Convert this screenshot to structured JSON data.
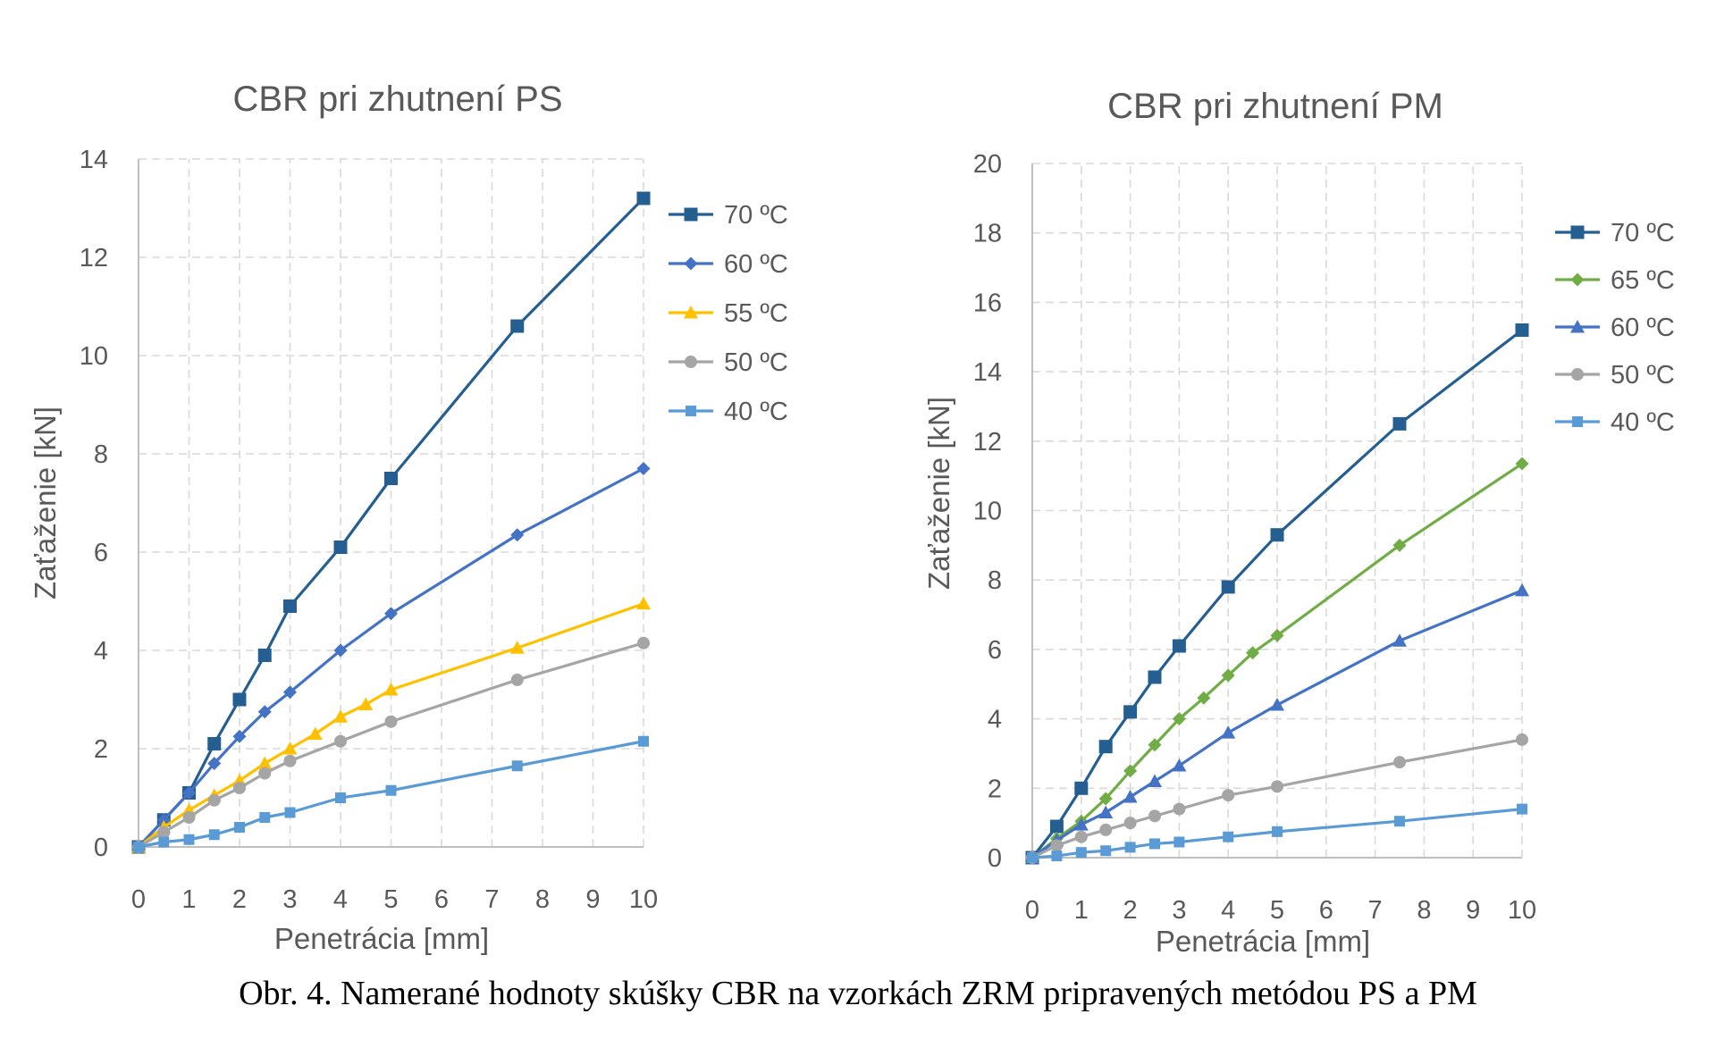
{
  "caption": "Obr. 4. Namerané hodnoty skúšky CBR na vzorkách ZRM pripravených metódou PS a PM",
  "chart_data": [
    {
      "type": "line",
      "title": "CBR pri zhutnení PS",
      "xlabel": "Penetrácia [mm]",
      "ylabel": "Zaťaženie [kN]",
      "xlim": [
        0,
        10
      ],
      "ylim": [
        0,
        14
      ],
      "xticks": [
        0,
        1,
        2,
        3,
        4,
        5,
        6,
        7,
        8,
        9,
        10
      ],
      "yticks": [
        0,
        2,
        4,
        6,
        8,
        10,
        12,
        14
      ],
      "grid": true,
      "legend_position": "right",
      "series": [
        {
          "name": "70 ºC",
          "color": "#255E91",
          "marker": "square",
          "x": [
            0,
            0.5,
            1,
            1.5,
            2,
            2.5,
            3,
            4,
            5,
            7.5,
            10
          ],
          "y": [
            0,
            0.55,
            1.1,
            2.1,
            3.0,
            3.9,
            4.9,
            6.1,
            7.5,
            10.6,
            13.2
          ]
        },
        {
          "name": "60 ºC",
          "color": "#4472C4",
          "marker": "diamond",
          "x": [
            0,
            0.5,
            1,
            1.5,
            2,
            2.5,
            3,
            4,
            5,
            7.5,
            10
          ],
          "y": [
            0,
            0.55,
            1.1,
            1.7,
            2.25,
            2.75,
            3.15,
            4.0,
            4.75,
            6.35,
            7.7
          ]
        },
        {
          "name": "55 ºC",
          "color": "#FFC000",
          "marker": "triangle",
          "x": [
            0,
            0.5,
            1,
            1.5,
            2,
            2.5,
            3,
            3.5,
            4,
            4.5,
            5,
            7.5,
            10
          ],
          "y": [
            0,
            0.4,
            0.75,
            1.05,
            1.35,
            1.7,
            2.0,
            2.3,
            2.65,
            2.9,
            3.2,
            4.05,
            4.95
          ]
        },
        {
          "name": "50 ºC",
          "color": "#A5A5A5",
          "marker": "circle",
          "x": [
            0,
            0.5,
            1,
            1.5,
            2,
            2.5,
            3,
            4,
            5,
            7.5,
            10
          ],
          "y": [
            0,
            0.3,
            0.6,
            0.95,
            1.2,
            1.5,
            1.75,
            2.15,
            2.55,
            3.4,
            4.15
          ]
        },
        {
          "name": "40 ºC",
          "color": "#5B9BD5",
          "marker": "star",
          "x": [
            0,
            0.5,
            1,
            1.5,
            2,
            2.5,
            3,
            4,
            5,
            7.5,
            10
          ],
          "y": [
            0,
            0.1,
            0.15,
            0.25,
            0.4,
            0.6,
            0.7,
            1.0,
            1.15,
            1.65,
            2.15
          ]
        }
      ]
    },
    {
      "type": "line",
      "title": "CBR pri zhutnení PM",
      "xlabel": "Penetrácia [mm]",
      "ylabel": "Zaťaženie [kN]",
      "xlim": [
        0,
        10
      ],
      "ylim": [
        0,
        20
      ],
      "xticks": [
        0,
        1,
        2,
        3,
        4,
        5,
        6,
        7,
        8,
        9,
        10
      ],
      "yticks": [
        0,
        2,
        4,
        6,
        8,
        10,
        12,
        14,
        16,
        18,
        20
      ],
      "grid": true,
      "legend_position": "right",
      "series": [
        {
          "name": "70 ºC",
          "color": "#255E91",
          "marker": "square",
          "x": [
            0,
            0.5,
            1,
            1.5,
            2,
            2.5,
            3,
            4,
            5,
            7.5,
            10
          ],
          "y": [
            0,
            0.9,
            2.0,
            3.2,
            4.2,
            5.2,
            6.1,
            7.8,
            9.3,
            12.5,
            15.2
          ]
        },
        {
          "name": "65 ºC",
          "color": "#70AD47",
          "marker": "diamond",
          "x": [
            0,
            0.5,
            1,
            1.5,
            2,
            2.5,
            3,
            3.5,
            4,
            4.5,
            5,
            7.5,
            10
          ],
          "y": [
            0,
            0.55,
            1.05,
            1.7,
            2.5,
            3.25,
            4.0,
            4.6,
            5.25,
            5.9,
            6.4,
            9.0,
            11.35
          ]
        },
        {
          "name": "60 ºC",
          "color": "#4472C4",
          "marker": "triangle",
          "x": [
            0,
            0.5,
            1,
            1.5,
            2,
            2.5,
            3,
            4,
            5,
            7.5,
            10
          ],
          "y": [
            0,
            0.5,
            0.95,
            1.3,
            1.75,
            2.2,
            2.65,
            3.6,
            4.4,
            6.25,
            7.7
          ]
        },
        {
          "name": "50 ºC",
          "color": "#A5A5A5",
          "marker": "circle",
          "x": [
            0,
            0.5,
            1,
            1.5,
            2,
            2.5,
            3,
            4,
            5,
            7.5,
            10
          ],
          "y": [
            0,
            0.35,
            0.6,
            0.8,
            1.0,
            1.2,
            1.4,
            1.8,
            2.05,
            2.75,
            3.4
          ]
        },
        {
          "name": "40 ºC",
          "color": "#5B9BD5",
          "marker": "star",
          "x": [
            0,
            0.5,
            1,
            1.5,
            2,
            2.5,
            3,
            4,
            5,
            7.5,
            10
          ],
          "y": [
            0,
            0.05,
            0.15,
            0.2,
            0.3,
            0.4,
            0.45,
            0.6,
            0.75,
            1.05,
            1.4
          ]
        }
      ]
    }
  ]
}
